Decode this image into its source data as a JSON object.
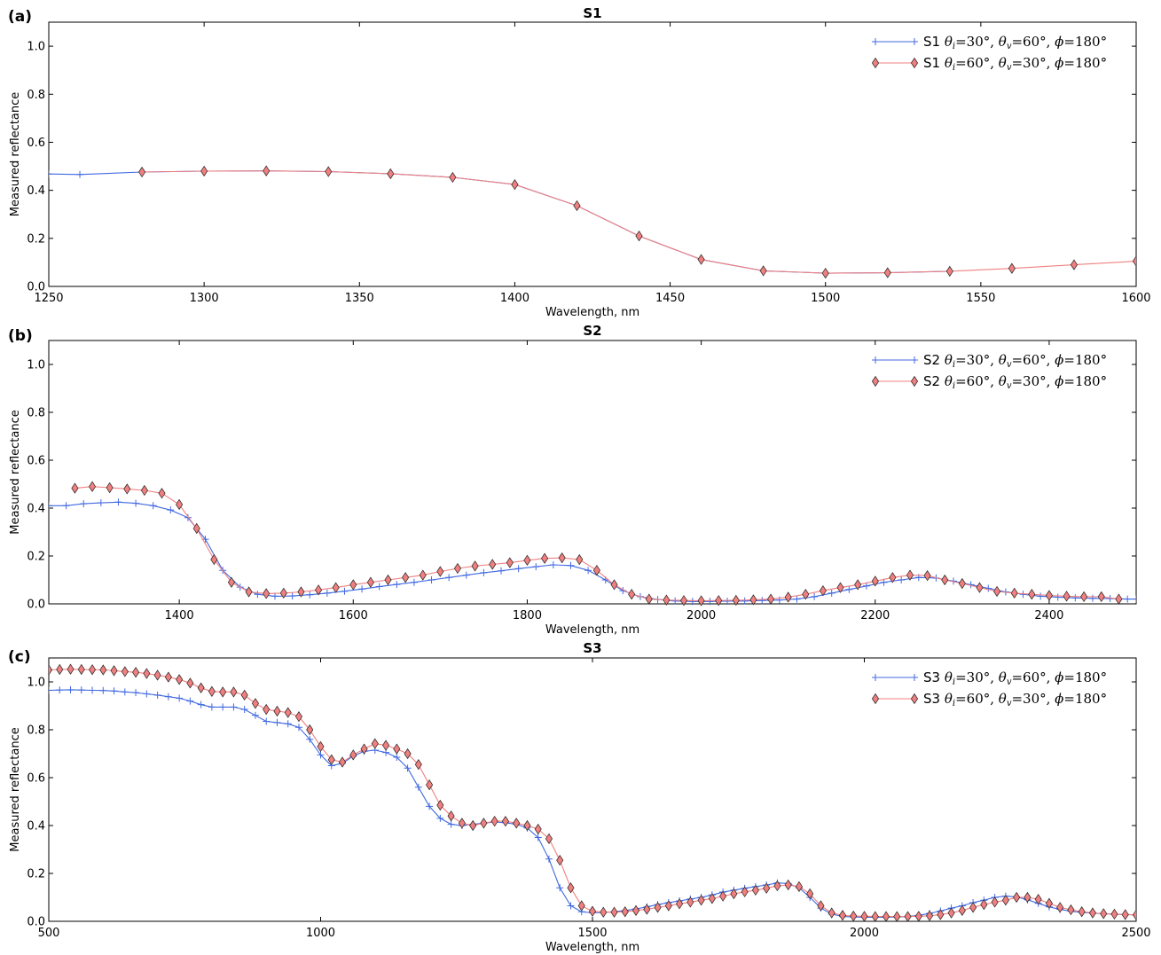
{
  "chart_data": [
    {
      "type": "line",
      "panel_label": "(a)",
      "title": "S1",
      "xlabel": "Wavelength, nm",
      "ylabel": "Measured reflectance",
      "xlim": [
        1250,
        1600
      ],
      "ylim": [
        0.0,
        1.1
      ],
      "xticks": [
        "1250",
        "1300",
        "1350",
        "1400",
        "1450",
        "1500",
        "1550",
        "1600"
      ],
      "yticks": [
        "0.0",
        "0.2",
        "0.4",
        "0.6",
        "0.8",
        "1.0"
      ],
      "legend_position": "top-right",
      "series": [
        {
          "name": "S1 θi=30°, θv=60°, ϕ=180°",
          "name_parts": [
            "S1 ",
            "θ",
            "i",
            "=30°, ",
            "θ",
            "v",
            "=60°, ",
            "ϕ",
            "=180°"
          ],
          "color": "#4169e1",
          "marker": "plus",
          "x": [
            1250,
            1260,
            1280,
            1300,
            1320,
            1340,
            1360,
            1380,
            1400,
            1420,
            1440,
            1460,
            1480,
            1500,
            1520,
            1540
          ],
          "y": [
            0.468,
            0.466,
            0.476,
            0.48,
            0.481,
            0.478,
            0.469,
            0.454,
            0.424,
            0.336,
            0.21,
            0.112,
            0.065,
            0.055,
            0.057,
            0.063
          ]
        },
        {
          "name": "S1 θi=60°, θv=30°, ϕ=180°",
          "name_parts": [
            "S1 ",
            "θ",
            "i",
            "=60°, ",
            "θ",
            "v",
            "=30°, ",
            "ϕ",
            "=180°"
          ],
          "color": "#f08080",
          "marker": "diamond",
          "x": [
            1280,
            1300,
            1320,
            1340,
            1360,
            1380,
            1400,
            1420,
            1440,
            1460,
            1480,
            1500,
            1520,
            1540,
            1560,
            1580,
            1600
          ],
          "y": [
            0.476,
            0.48,
            0.481,
            0.478,
            0.469,
            0.454,
            0.424,
            0.336,
            0.21,
            0.112,
            0.065,
            0.055,
            0.057,
            0.063,
            0.075,
            0.09,
            0.105
          ]
        }
      ]
    },
    {
      "type": "line",
      "panel_label": "(b)",
      "title": "S2",
      "xlabel": "Wavelength, nm",
      "ylabel": "Measured reflectance",
      "xlim": [
        1250,
        2500
      ],
      "ylim": [
        0.0,
        1.1
      ],
      "xticks": [
        "1400",
        "1600",
        "1800",
        "2000",
        "2200",
        "2400"
      ],
      "yticks": [
        "0.0",
        "0.2",
        "0.4",
        "0.6",
        "0.8",
        "1.0"
      ],
      "legend_position": "top-right",
      "series": [
        {
          "name": "S2 θi=30°, θv=60°, ϕ=180°",
          "name_parts": [
            "S2 ",
            "θ",
            "i",
            "=30°, ",
            "θ",
            "v",
            "=60°, ",
            "ϕ",
            "=180°"
          ],
          "color": "#4169e1",
          "marker": "plus",
          "x": [
            1250,
            1270,
            1290,
            1310,
            1330,
            1350,
            1370,
            1390,
            1410,
            1430,
            1450,
            1470,
            1490,
            1510,
            1530,
            1550,
            1570,
            1590,
            1610,
            1630,
            1650,
            1670,
            1690,
            1710,
            1730,
            1750,
            1770,
            1790,
            1810,
            1830,
            1850,
            1870,
            1890,
            1910,
            1930,
            1950,
            1970,
            1990,
            2010,
            2030,
            2050,
            2070,
            2090,
            2110,
            2130,
            2150,
            2170,
            2190,
            2210,
            2230,
            2250,
            2270,
            2290,
            2310,
            2330,
            2350,
            2370,
            2390,
            2410,
            2430,
            2450,
            2470,
            2490,
            2500
          ],
          "y": [
            0.41,
            0.41,
            0.418,
            0.422,
            0.425,
            0.42,
            0.41,
            0.392,
            0.36,
            0.27,
            0.14,
            0.07,
            0.04,
            0.032,
            0.033,
            0.038,
            0.045,
            0.053,
            0.062,
            0.072,
            0.081,
            0.09,
            0.1,
            0.11,
            0.12,
            0.13,
            0.138,
            0.147,
            0.155,
            0.163,
            0.16,
            0.14,
            0.1,
            0.055,
            0.03,
            0.018,
            0.012,
            0.01,
            0.01,
            0.011,
            0.012,
            0.014,
            0.016,
            0.02,
            0.03,
            0.045,
            0.06,
            0.075,
            0.09,
            0.1,
            0.11,
            0.108,
            0.095,
            0.08,
            0.065,
            0.05,
            0.04,
            0.032,
            0.028,
            0.025,
            0.023,
            0.022,
            0.02,
            0.02
          ]
        },
        {
          "name": "S2  θi=60°, θv=30°, ϕ=180°",
          "name_parts": [
            "S2  ",
            "θ",
            "i",
            "=60°, ",
            "θ",
            "v",
            "=30°, ",
            "ϕ",
            "=180°"
          ],
          "color": "#f08080",
          "marker": "diamond",
          "x": [
            1280,
            1300,
            1320,
            1340,
            1360,
            1380,
            1400,
            1420,
            1440,
            1460,
            1480,
            1500,
            1520,
            1540,
            1560,
            1580,
            1600,
            1620,
            1640,
            1660,
            1680,
            1700,
            1720,
            1740,
            1760,
            1780,
            1800,
            1820,
            1840,
            1860,
            1880,
            1900,
            1920,
            1940,
            1960,
            1980,
            2000,
            2020,
            2040,
            2060,
            2080,
            2100,
            2120,
            2140,
            2160,
            2180,
            2200,
            2220,
            2240,
            2260,
            2280,
            2300,
            2320,
            2340,
            2360,
            2380,
            2400,
            2420,
            2440,
            2460,
            2480
          ],
          "y": [
            0.483,
            0.49,
            0.485,
            0.48,
            0.474,
            0.462,
            0.415,
            0.315,
            0.185,
            0.09,
            0.05,
            0.043,
            0.045,
            0.05,
            0.058,
            0.068,
            0.08,
            0.09,
            0.1,
            0.11,
            0.12,
            0.135,
            0.148,
            0.158,
            0.165,
            0.172,
            0.182,
            0.19,
            0.192,
            0.185,
            0.14,
            0.08,
            0.04,
            0.02,
            0.016,
            0.014,
            0.013,
            0.014,
            0.015,
            0.017,
            0.02,
            0.028,
            0.04,
            0.055,
            0.068,
            0.08,
            0.095,
            0.11,
            0.12,
            0.118,
            0.1,
            0.085,
            0.068,
            0.052,
            0.045,
            0.04,
            0.035,
            0.032,
            0.03,
            0.03,
            0.02
          ]
        }
      ]
    },
    {
      "type": "line",
      "panel_label": "(c)",
      "title": "S3",
      "xlabel": "Wavelength, nm",
      "ylabel": "Measured reflectance",
      "xlim": [
        500,
        2500
      ],
      "ylim": [
        0.0,
        1.1
      ],
      "xticks": [
        "500",
        "1000",
        "1500",
        "2000",
        "2500"
      ],
      "yticks": [
        "0.0",
        "0.2",
        "0.4",
        "0.6",
        "0.8",
        "1.0"
      ],
      "legend_position": "top-right",
      "series": [
        {
          "name": "S3 θi=30°, θv=60°, ϕ=180°",
          "name_parts": [
            "S3 ",
            "θ",
            "i",
            "=30°, ",
            "θ",
            "v",
            "=60°, ",
            "ϕ",
            "=180°"
          ],
          "color": "#4169e1",
          "marker": "plus",
          "x": [
            500,
            520,
            540,
            560,
            580,
            600,
            620,
            640,
            660,
            680,
            700,
            720,
            740,
            760,
            780,
            800,
            820,
            840,
            860,
            880,
            900,
            920,
            940,
            960,
            980,
            1000,
            1020,
            1040,
            1060,
            1080,
            1100,
            1120,
            1140,
            1160,
            1180,
            1200,
            1220,
            1240,
            1260,
            1280,
            1300,
            1320,
            1340,
            1360,
            1380,
            1400,
            1420,
            1440,
            1460,
            1480,
            1500,
            1520,
            1540,
            1560,
            1580,
            1600,
            1620,
            1640,
            1660,
            1680,
            1700,
            1720,
            1740,
            1760,
            1780,
            1800,
            1820,
            1840,
            1860,
            1880,
            1900,
            1920,
            1940,
            1960,
            1980,
            2000,
            2020,
            2040,
            2060,
            2080,
            2100,
            2120,
            2140,
            2160,
            2180,
            2200,
            2220,
            2240,
            2260,
            2280,
            2300,
            2320,
            2340,
            2360,
            2380,
            2400,
            2420,
            2440,
            2460,
            2480,
            2500
          ],
          "y": [
            0.965,
            0.966,
            0.967,
            0.966,
            0.965,
            0.964,
            0.962,
            0.958,
            0.955,
            0.95,
            0.945,
            0.938,
            0.932,
            0.92,
            0.905,
            0.895,
            0.895,
            0.895,
            0.885,
            0.86,
            0.835,
            0.83,
            0.825,
            0.81,
            0.76,
            0.695,
            0.65,
            0.66,
            0.69,
            0.71,
            0.715,
            0.705,
            0.685,
            0.64,
            0.56,
            0.48,
            0.43,
            0.405,
            0.4,
            0.405,
            0.41,
            0.415,
            0.412,
            0.405,
            0.39,
            0.35,
            0.26,
            0.14,
            0.065,
            0.04,
            0.035,
            0.037,
            0.04,
            0.045,
            0.052,
            0.06,
            0.07,
            0.078,
            0.085,
            0.093,
            0.1,
            0.11,
            0.122,
            0.13,
            0.138,
            0.145,
            0.152,
            0.16,
            0.158,
            0.14,
            0.1,
            0.055,
            0.03,
            0.02,
            0.018,
            0.017,
            0.017,
            0.017,
            0.018,
            0.02,
            0.025,
            0.033,
            0.043,
            0.055,
            0.065,
            0.078,
            0.088,
            0.1,
            0.105,
            0.102,
            0.09,
            0.075,
            0.06,
            0.05,
            0.042,
            0.037,
            0.034,
            0.032,
            0.03,
            0.028,
            0.027
          ]
        },
        {
          "name": "S3  θi=60°, θv=30°, ϕ=180°",
          "name_parts": [
            "S3  ",
            "θ",
            "i",
            "=60°, ",
            "θ",
            "v",
            "=30°, ",
            "ϕ",
            "=180°"
          ],
          "color": "#f08080",
          "marker": "diamond",
          "x": [
            500,
            520,
            540,
            560,
            580,
            600,
            620,
            640,
            660,
            680,
            700,
            720,
            740,
            760,
            780,
            800,
            820,
            840,
            860,
            880,
            900,
            920,
            940,
            960,
            980,
            1000,
            1020,
            1040,
            1060,
            1080,
            1100,
            1120,
            1140,
            1160,
            1180,
            1200,
            1220,
            1240,
            1260,
            1280,
            1300,
            1320,
            1340,
            1360,
            1380,
            1400,
            1420,
            1440,
            1460,
            1480,
            1500,
            1520,
            1540,
            1560,
            1580,
            1600,
            1620,
            1640,
            1660,
            1680,
            1700,
            1720,
            1740,
            1760,
            1780,
            1800,
            1820,
            1840,
            1860,
            1880,
            1900,
            1920,
            1940,
            1960,
            1980,
            2000,
            2020,
            2040,
            2060,
            2080,
            2100,
            2120,
            2140,
            2160,
            2180,
            2200,
            2220,
            2240,
            2260,
            2280,
            2300,
            2320,
            2340,
            2360,
            2380,
            2400,
            2420,
            2440,
            2460,
            2480,
            2500
          ],
          "y": [
            1.05,
            1.052,
            1.053,
            1.052,
            1.051,
            1.05,
            1.047,
            1.043,
            1.04,
            1.035,
            1.028,
            1.02,
            1.01,
            0.995,
            0.975,
            0.96,
            0.958,
            0.958,
            0.945,
            0.91,
            0.885,
            0.878,
            0.872,
            0.855,
            0.8,
            0.73,
            0.675,
            0.665,
            0.695,
            0.72,
            0.742,
            0.735,
            0.72,
            0.7,
            0.655,
            0.57,
            0.485,
            0.44,
            0.41,
            0.4,
            0.41,
            0.418,
            0.418,
            0.41,
            0.4,
            0.385,
            0.345,
            0.255,
            0.14,
            0.065,
            0.042,
            0.038,
            0.038,
            0.04,
            0.045,
            0.05,
            0.058,
            0.065,
            0.073,
            0.08,
            0.088,
            0.095,
            0.105,
            0.115,
            0.123,
            0.13,
            0.138,
            0.148,
            0.152,
            0.145,
            0.115,
            0.065,
            0.035,
            0.025,
            0.022,
            0.021,
            0.02,
            0.02,
            0.02,
            0.02,
            0.021,
            0.023,
            0.028,
            0.035,
            0.045,
            0.058,
            0.07,
            0.08,
            0.088,
            0.1,
            0.1,
            0.092,
            0.075,
            0.058,
            0.048,
            0.04,
            0.035,
            0.032,
            0.03,
            0.028,
            0.027
          ]
        }
      ]
    }
  ]
}
